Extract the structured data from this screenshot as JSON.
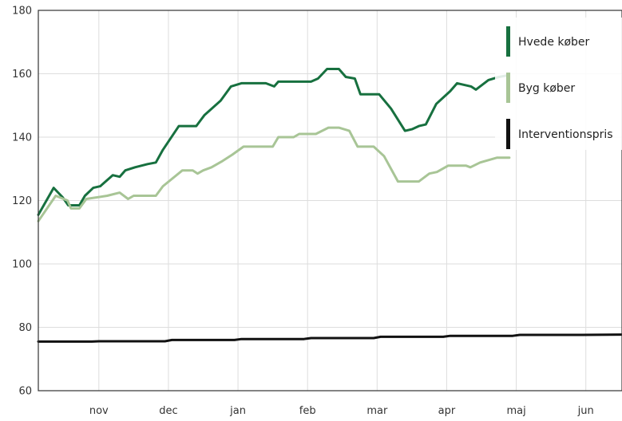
{
  "chart_data": {
    "type": "line",
    "title": "",
    "xlabel": "",
    "ylabel": "",
    "ylim": [
      60,
      180
    ],
    "yticks": [
      60,
      80,
      100,
      120,
      140,
      160,
      180
    ],
    "x_tick_labels": [
      "nov",
      "dec",
      "jan",
      "feb",
      "mar",
      "apr",
      "maj",
      "jun"
    ],
    "x_tick_positions": [
      1,
      2,
      3,
      4,
      5,
      6,
      7,
      8
    ],
    "xlim": [
      0.13,
      8.52
    ],
    "grid": true,
    "legend_position": "top-right",
    "series": [
      {
        "name": "Hvede køber",
        "color": "#17703f",
        "points": [
          [
            0.13,
            115.5
          ],
          [
            0.35,
            124
          ],
          [
            0.48,
            121
          ],
          [
            0.56,
            118.5
          ],
          [
            0.72,
            118.5
          ],
          [
            0.8,
            121.5
          ],
          [
            0.92,
            124
          ],
          [
            1.02,
            124.5
          ],
          [
            1.2,
            128
          ],
          [
            1.3,
            127.5
          ],
          [
            1.38,
            129.5
          ],
          [
            1.52,
            130.5
          ],
          [
            1.7,
            131.5
          ],
          [
            1.82,
            132
          ],
          [
            1.92,
            136
          ],
          [
            2.15,
            143.5
          ],
          [
            2.4,
            143.5
          ],
          [
            2.52,
            147
          ],
          [
            2.75,
            151.5
          ],
          [
            2.9,
            156
          ],
          [
            3.05,
            157
          ],
          [
            3.4,
            157
          ],
          [
            3.52,
            156
          ],
          [
            3.58,
            157.5
          ],
          [
            3.92,
            157.5
          ],
          [
            4.05,
            157.5
          ],
          [
            4.15,
            158.5
          ],
          [
            4.28,
            161.5
          ],
          [
            4.45,
            161.5
          ],
          [
            4.55,
            159
          ],
          [
            4.68,
            158.5
          ],
          [
            4.76,
            153.5
          ],
          [
            5.03,
            153.5
          ],
          [
            5.2,
            149
          ],
          [
            5.4,
            142
          ],
          [
            5.5,
            142.5
          ],
          [
            5.6,
            143.5
          ],
          [
            5.7,
            144
          ],
          [
            5.85,
            150.5
          ],
          [
            6.05,
            154.5
          ],
          [
            6.15,
            157
          ],
          [
            6.35,
            156
          ],
          [
            6.42,
            155
          ],
          [
            6.6,
            158
          ],
          [
            6.75,
            159
          ],
          [
            6.88,
            159.5
          ]
        ]
      },
      {
        "name": "Byg køber",
        "color": "#a8c596",
        "points": [
          [
            0.13,
            113.5
          ],
          [
            0.38,
            121.5
          ],
          [
            0.55,
            120
          ],
          [
            0.6,
            117.5
          ],
          [
            0.72,
            117.5
          ],
          [
            0.82,
            120.5
          ],
          [
            1.12,
            121.5
          ],
          [
            1.3,
            122.5
          ],
          [
            1.42,
            120.5
          ],
          [
            1.5,
            121.5
          ],
          [
            1.82,
            121.5
          ],
          [
            1.92,
            124.5
          ],
          [
            2.2,
            129.5
          ],
          [
            2.35,
            129.5
          ],
          [
            2.42,
            128.5
          ],
          [
            2.5,
            129.5
          ],
          [
            2.62,
            130.5
          ],
          [
            2.78,
            132.5
          ],
          [
            2.92,
            134.5
          ],
          [
            3.08,
            137
          ],
          [
            3.5,
            137
          ],
          [
            3.58,
            140
          ],
          [
            3.8,
            140
          ],
          [
            3.88,
            141
          ],
          [
            4.12,
            141
          ],
          [
            4.3,
            143
          ],
          [
            4.45,
            143
          ],
          [
            4.6,
            142
          ],
          [
            4.72,
            137
          ],
          [
            4.95,
            137
          ],
          [
            5.1,
            134
          ],
          [
            5.3,
            126
          ],
          [
            5.5,
            126
          ],
          [
            5.6,
            126
          ],
          [
            5.75,
            128.5
          ],
          [
            5.86,
            129
          ],
          [
            6.02,
            131
          ],
          [
            6.28,
            131
          ],
          [
            6.34,
            130.5
          ],
          [
            6.48,
            132
          ],
          [
            6.72,
            133.5
          ],
          [
            6.9,
            133.5
          ]
        ]
      },
      {
        "name": "Interventionspris",
        "color": "#111111",
        "points": [
          [
            0.13,
            75.5
          ],
          [
            0.9,
            75.5
          ],
          [
            1.0,
            75.6
          ],
          [
            1.95,
            75.6
          ],
          [
            2.05,
            76
          ],
          [
            2.95,
            76
          ],
          [
            3.05,
            76.3
          ],
          [
            3.95,
            76.3
          ],
          [
            4.05,
            76.6
          ],
          [
            4.95,
            76.6
          ],
          [
            5.05,
            77
          ],
          [
            5.95,
            77
          ],
          [
            6.05,
            77.3
          ],
          [
            6.95,
            77.3
          ],
          [
            7.05,
            77.6
          ],
          [
            7.95,
            77.6
          ],
          [
            8.52,
            77.7
          ]
        ]
      }
    ]
  },
  "legend": {
    "items": [
      {
        "label": "Hvede køber",
        "color": "#17703f"
      },
      {
        "label": "Byg køber",
        "color": "#a8c596"
      },
      {
        "label": "Interventionspris",
        "color": "#111111"
      }
    ]
  }
}
